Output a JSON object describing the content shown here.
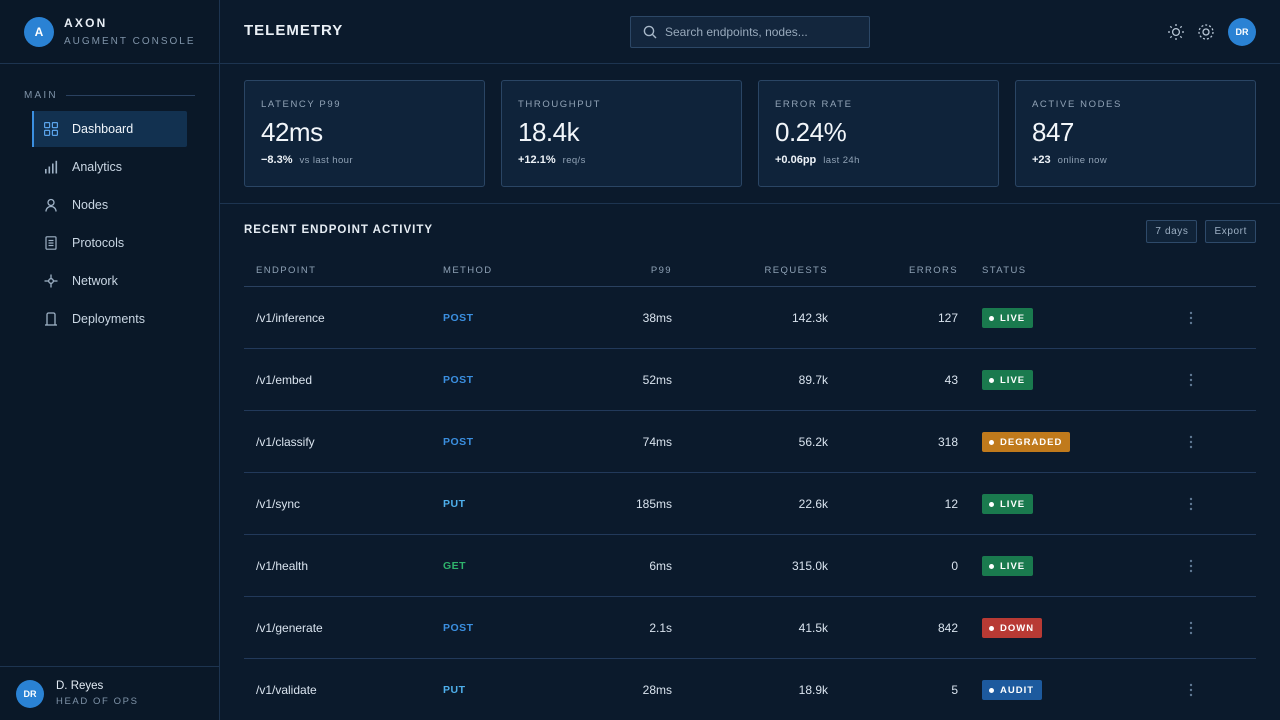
{
  "brand": {
    "logo_letter": "A",
    "name": "AXON",
    "subtitle": "AUGMENT CONSOLE"
  },
  "sidebar": {
    "section_label": "MAIN",
    "items": [
      {
        "label": "Dashboard",
        "icon": "grid-icon",
        "active": true
      },
      {
        "label": "Analytics",
        "icon": "bar-chart-icon",
        "active": false
      },
      {
        "label": "Nodes",
        "icon": "person-icon",
        "active": false
      },
      {
        "label": "Protocols",
        "icon": "document-icon",
        "active": false
      },
      {
        "label": "Network",
        "icon": "network-node-icon",
        "active": false
      },
      {
        "label": "Deployments",
        "icon": "deploy-icon",
        "active": false
      }
    ]
  },
  "user": {
    "initials": "DR",
    "name": "D. Reyes",
    "role": "HEAD OF OPS"
  },
  "header": {
    "title": "TELEMETRY",
    "search_placeholder": "Search endpoints, nodes...",
    "avatar_initials": "DR",
    "icons": [
      "sun-icon",
      "loading-spinner-icon"
    ]
  },
  "kpis": [
    {
      "label": "LATENCY P99",
      "value": "42ms",
      "delta": "−8.3%",
      "note": "vs last hour"
    },
    {
      "label": "THROUGHPUT",
      "value": "18.4k",
      "delta": "+12.1%",
      "note": "req/s"
    },
    {
      "label": "ERROR RATE",
      "value": "0.24%",
      "delta": "+0.06pp",
      "note": "last 24h"
    },
    {
      "label": "ACTIVE NODES",
      "value": "847",
      "delta": "+23",
      "note": "online now"
    }
  ],
  "activity": {
    "title": "RECENT ENDPOINT ACTIVITY",
    "range_button": "7 days",
    "export_button": "Export",
    "columns": {
      "endpoint": "ENDPOINT",
      "method": "METHOD",
      "p99": "P99",
      "requests": "REQUESTS",
      "errors": "ERRORS",
      "status": "STATUS"
    },
    "rows": [
      {
        "endpoint": "/v1/inference",
        "method": "POST",
        "p99": "38ms",
        "requests": "142.3k",
        "errors": "127",
        "status": "LIVE"
      },
      {
        "endpoint": "/v1/embed",
        "method": "POST",
        "p99": "52ms",
        "requests": "89.7k",
        "errors": "43",
        "status": "LIVE"
      },
      {
        "endpoint": "/v1/classify",
        "method": "POST",
        "p99": "74ms",
        "requests": "56.2k",
        "errors": "318",
        "status": "DEGRADED"
      },
      {
        "endpoint": "/v1/sync",
        "method": "PUT",
        "p99": "185ms",
        "requests": "22.6k",
        "errors": "12",
        "status": "LIVE"
      },
      {
        "endpoint": "/v1/health",
        "method": "GET",
        "p99": "6ms",
        "requests": "315.0k",
        "errors": "0",
        "status": "LIVE"
      },
      {
        "endpoint": "/v1/generate",
        "method": "POST",
        "p99": "2.1s",
        "requests": "41.5k",
        "errors": "842",
        "status": "DOWN"
      },
      {
        "endpoint": "/v1/validate",
        "method": "PUT",
        "p99": "28ms",
        "requests": "18.9k",
        "errors": "5",
        "status": "AUDIT"
      }
    ]
  },
  "colors": {
    "accent": "#2a82d4",
    "method_post": "#3b8fe0",
    "method_put": "#4fb0ec",
    "method_get": "#2fb36c",
    "status_live": "#1a7a4e",
    "status_degraded": "#c07a1c",
    "status_down": "#b83a34",
    "status_audit": "#1d5a9e"
  }
}
